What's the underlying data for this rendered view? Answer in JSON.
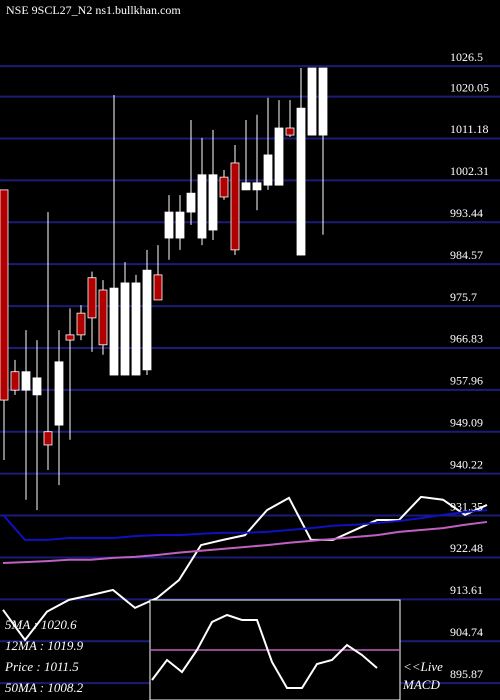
{
  "chart_data": {
    "type": "candlestick",
    "title": "NSE 9SCL27_N2 ns1.bullkhan.com",
    "ylim": [
      892.3,
      1040.5
    ],
    "yticks": [
      1026.5,
      1020.05,
      1011.18,
      1002.31,
      993.44,
      984.57,
      975.7,
      966.83,
      957.96,
      949.09,
      940.22,
      931.35,
      922.48,
      913.61,
      904.74,
      895.87
    ],
    "grid": true,
    "grid_color": "#1c1c78",
    "up_color": "#ffffff",
    "down_color": "#b00000",
    "open": [
      1000.3,
      961.8,
      957.9,
      956.9,
      949.1,
      950.5,
      969.6,
      974.2,
      981.7,
      979.1,
      961.1,
      961.1,
      961.1,
      962.2,
      982.3,
      990.1,
      990.1,
      995.6,
      990.1,
      991.8,
      1003.0,
      1006.0,
      1000.3,
      1000.3,
      1001.3,
      1001.3,
      1013.4,
      986.5,
      1011.9,
      1011.9
    ],
    "high": [
      1000.3,
      964.3,
      970.6,
      968.5,
      995.6,
      970.6,
      975.2,
      975.9,
      983.0,
      981.2,
      1020.4,
      985.0,
      982.3,
      987.6,
      988.6,
      999.2,
      999.2,
      1015.1,
      1011.3,
      1013.0,
      1004.5,
      1009.8,
      1015.1,
      1016.2,
      1019.8,
      1019.3,
      1019.3,
      1026.1,
      1026.1,
      1026.1
    ],
    "low": [
      943.1,
      956.9,
      934.7,
      932.5,
      941.0,
      937.8,
      947.4,
      968.5,
      966.0,
      965.4,
      961.1,
      961.1,
      961.1,
      961.1,
      977.0,
      985.5,
      987.6,
      992.9,
      988.6,
      989.7,
      998.2,
      986.5,
      1000.3,
      996.0,
      1000.3,
      1001.3,
      1011.5,
      986.5,
      1011.9,
      990.8
    ],
    "close": [
      955.8,
      957.9,
      961.8,
      960.5,
      946.3,
      963.9,
      968.5,
      969.6,
      973.2,
      967.5,
      979.5,
      980.6,
      980.6,
      983.3,
      977.0,
      995.6,
      995.6,
      999.6,
      1003.5,
      1003.5,
      998.8,
      987.6,
      1001.8,
      1001.8,
      1007.7,
      1013.4,
      1011.9,
      1017.6,
      1026.1,
      1026.1
    ],
    "lines": [
      {
        "color": "#ffffff",
        "values": [
          911.4,
          905.0,
          911.0,
          913.5,
          914.5,
          915.6,
          911.8,
          913.9,
          917.7,
          925.1,
          926.2,
          927.2,
          932.5,
          935.1,
          926.2,
          926.2,
          928.3,
          930.4,
          930.4,
          935.3,
          934.7,
          931.5,
          933.6
        ]
      },
      {
        "color": "#1010c0",
        "values": [
          931.5,
          926.2,
          926.2,
          926.6,
          926.6,
          926.6,
          927.0,
          927.2,
          927.2,
          927.5,
          927.7,
          927.7,
          927.9,
          928.3,
          928.7,
          929.2,
          929.4,
          929.8,
          930.2,
          930.8,
          931.5,
          932.1,
          932.5
        ]
      },
      {
        "color": "#c060c0",
        "values": [
          921.3,
          921.5,
          921.7,
          922.0,
          922.0,
          922.4,
          922.6,
          923.0,
          923.5,
          923.9,
          924.3,
          924.7,
          925.1,
          925.6,
          926.0,
          926.4,
          926.8,
          927.2,
          927.9,
          928.3,
          928.7,
          929.4,
          930.0
        ]
      }
    ],
    "legend": [
      "5MA    : 1020.6",
      "12MA  : 1019.9",
      "Price   : 1011.5",
      "50MA  : 1008.2"
    ],
    "macd": {
      "ylim": [
        -1,
        1
      ],
      "signal": 0,
      "values": [
        -0.6,
        -0.2,
        -0.44,
        0,
        0.56,
        0.7,
        0.6,
        0.6,
        -0.24,
        -0.76,
        -0.76,
        -0.28,
        -0.2,
        0.1,
        -0.1,
        -0.36
      ]
    },
    "macd_labels": [
      "<<Live",
      "MACD"
    ]
  }
}
